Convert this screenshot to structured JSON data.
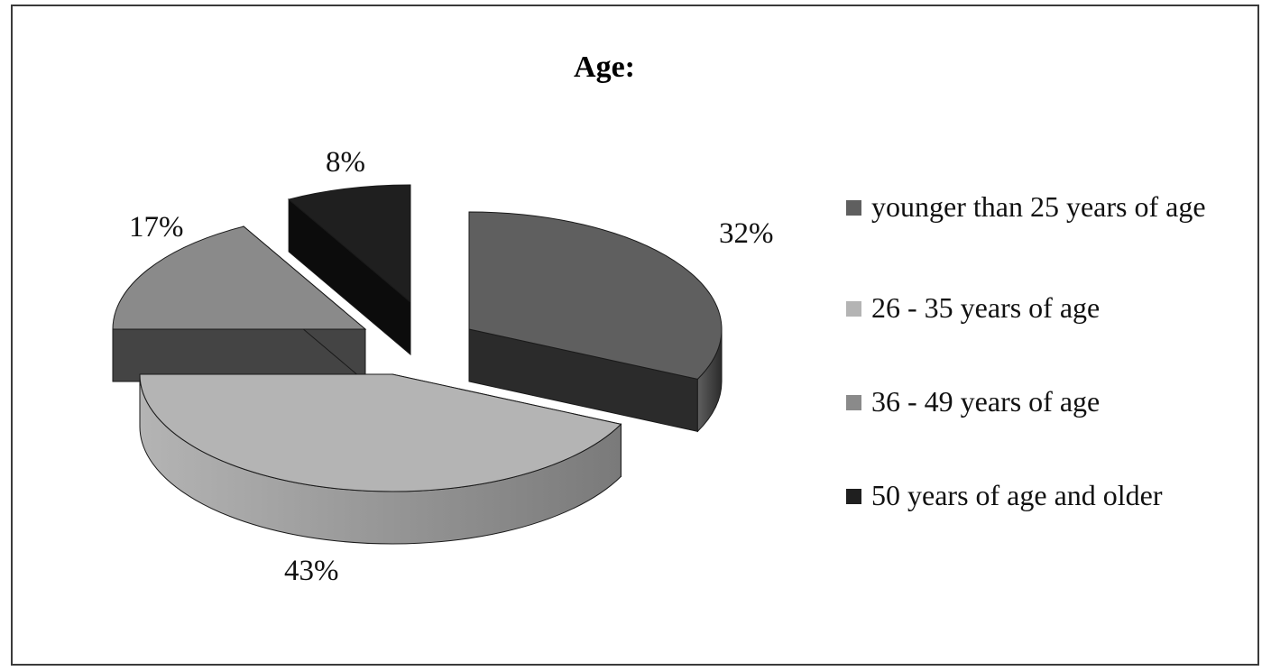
{
  "chart_data": {
    "type": "pie",
    "title": "Age:",
    "slices": [
      {
        "label": "younger than 25 years of age",
        "value": 32,
        "display": "32%",
        "color": "#5f5f5f",
        "side_color": "#2b2b2b"
      },
      {
        "label": "26 - 35 years of age",
        "value": 43,
        "display": "43%",
        "color": "#b4b4b4",
        "side_color": "#7a7a7a"
      },
      {
        "label": "36 - 49 years of age",
        "value": 17,
        "display": "17%",
        "color": "#8a8a8a",
        "side_color": "#444444"
      },
      {
        "label": "50 years of age and older",
        "value": 8,
        "display": "8%",
        "color": "#1f1f1f",
        "side_color": "#0c0c0c"
      }
    ],
    "legend_placement": "right",
    "style": "3d-exploded"
  }
}
